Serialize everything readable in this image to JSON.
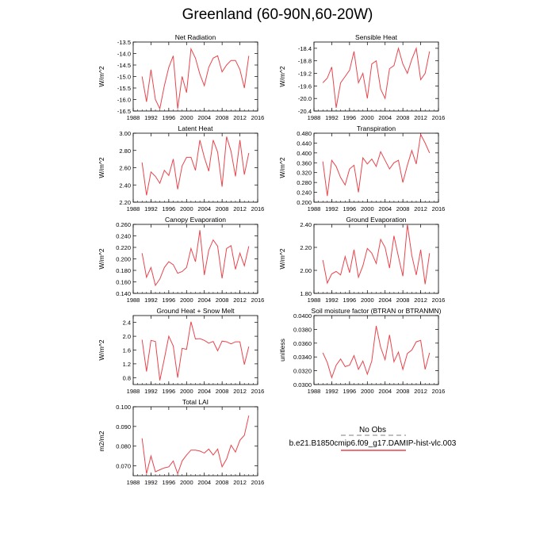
{
  "page": {
    "title": "Greenland (60-90N,60-20W)"
  },
  "legend": {
    "entries": [
      {
        "label": "No Obs",
        "color": "#aaaaaa",
        "dashed": true
      },
      {
        "label": "b.e21.B1850cmip6.f09_g17.DAMIP-hist-vlc.003",
        "color": "#e8454d",
        "dashed": false
      }
    ]
  },
  "chart_data": [
    {
      "type": "line",
      "title": "Net Radiation",
      "ylabel": "W/m^2",
      "xlim": [
        1988,
        2016
      ],
      "ylim": [
        -16.5,
        -13.5
      ],
      "xticks": [
        1988,
        1992,
        1996,
        2000,
        2004,
        2008,
        2012,
        2016
      ],
      "yticks": [
        -16.5,
        -16.0,
        -15.5,
        -15.0,
        -14.5,
        -14.0,
        -13.5
      ],
      "ytick_labels": [
        "-16.5",
        "-16.0",
        "-15.5",
        "-15.0",
        "-14.5",
        "-14.0",
        "-13.5"
      ],
      "x": [
        1990,
        1991,
        1992,
        1993,
        1994,
        1995,
        1996,
        1997,
        1998,
        1999,
        2000,
        2001,
        2002,
        2003,
        2004,
        2005,
        2006,
        2007,
        2008,
        2009,
        2010,
        2011,
        2012,
        2013,
        2014
      ],
      "series": [
        {
          "color": "#e8454d",
          "values": [
            -15.0,
            -16.1,
            -14.7,
            -16.0,
            -16.4,
            -15.4,
            -14.6,
            -14.1,
            -16.4,
            -15.0,
            -15.7,
            -13.8,
            -14.2,
            -14.9,
            -15.4,
            -14.6,
            -14.2,
            -14.1,
            -14.8,
            -14.5,
            -14.3,
            -14.3,
            -14.7,
            -15.5,
            -14.1
          ]
        }
      ]
    },
    {
      "type": "line",
      "title": "Sensible Heat",
      "ylabel": "W/m^2",
      "xlim": [
        1988,
        2016
      ],
      "ylim": [
        -20.4,
        -18.2
      ],
      "xticks": [
        1988,
        1992,
        1996,
        2000,
        2004,
        2008,
        2012,
        2016
      ],
      "yticks": [
        -20.4,
        -20.0,
        -19.6,
        -19.2,
        -18.8,
        -18.4
      ],
      "ytick_labels": [
        "-20.4",
        "-20.0",
        "-19.6",
        "-19.2",
        "-18.8",
        "-18.4"
      ],
      "x": [
        1990,
        1991,
        1992,
        1993,
        1994,
        1995,
        1996,
        1997,
        1998,
        1999,
        2000,
        2001,
        2002,
        2003,
        2004,
        2005,
        2006,
        2007,
        2008,
        2009,
        2010,
        2011,
        2012,
        2013,
        2014
      ],
      "series": [
        {
          "color": "#e8454d",
          "values": [
            -19.5,
            -19.35,
            -19.0,
            -20.3,
            -19.5,
            -19.3,
            -19.1,
            -18.5,
            -19.5,
            -19.2,
            -20.0,
            -18.9,
            -18.8,
            -19.7,
            -20.0,
            -19.05,
            -18.95,
            -18.4,
            -18.9,
            -19.2,
            -18.75,
            -18.4,
            -19.4,
            -19.2,
            -18.5
          ]
        }
      ]
    },
    {
      "type": "line",
      "title": "Latent Heat",
      "ylabel": "W/m^2",
      "xlim": [
        1988,
        2016
      ],
      "ylim": [
        2.2,
        3.0
      ],
      "xticks": [
        1988,
        1992,
        1996,
        2000,
        2004,
        2008,
        2012,
        2016
      ],
      "yticks": [
        2.2,
        2.4,
        2.6,
        2.8,
        3.0
      ],
      "ytick_labels": [
        "2.20",
        "2.40",
        "2.60",
        "2.80",
        "3.00"
      ],
      "x": [
        1990,
        1991,
        1992,
        1993,
        1994,
        1995,
        1996,
        1997,
        1998,
        1999,
        2000,
        2001,
        2002,
        2003,
        2004,
        2005,
        2006,
        2007,
        2008,
        2009,
        2010,
        2011,
        2012,
        2013,
        2014
      ],
      "series": [
        {
          "color": "#e8454d",
          "values": [
            2.66,
            2.28,
            2.55,
            2.5,
            2.42,
            2.57,
            2.51,
            2.7,
            2.35,
            2.62,
            2.72,
            2.72,
            2.57,
            2.92,
            2.72,
            2.56,
            2.92,
            2.78,
            2.38,
            2.96,
            2.79,
            2.5,
            2.92,
            2.52,
            2.77
          ]
        }
      ]
    },
    {
      "type": "line",
      "title": "Transpiration",
      "ylabel": "W/m^2",
      "xlim": [
        1988,
        2016
      ],
      "ylim": [
        0.2,
        0.48
      ],
      "xticks": [
        1988,
        1992,
        1996,
        2000,
        2004,
        2008,
        2012,
        2016
      ],
      "yticks": [
        0.2,
        0.24,
        0.28,
        0.32,
        0.36,
        0.4,
        0.44,
        0.48
      ],
      "ytick_labels": [
        "0.200",
        "0.240",
        "0.280",
        "0.320",
        "0.360",
        "0.400",
        "0.440",
        "0.480"
      ],
      "x": [
        1990,
        1991,
        1992,
        1993,
        1994,
        1995,
        1996,
        1997,
        1998,
        1999,
        2000,
        2001,
        2002,
        2003,
        2004,
        2005,
        2006,
        2007,
        2008,
        2009,
        2010,
        2011,
        2012,
        2013,
        2014
      ],
      "series": [
        {
          "color": "#e8454d",
          "values": [
            0.365,
            0.225,
            0.37,
            0.345,
            0.3,
            0.27,
            0.335,
            0.35,
            0.24,
            0.38,
            0.355,
            0.375,
            0.345,
            0.405,
            0.37,
            0.335,
            0.36,
            0.37,
            0.28,
            0.35,
            0.41,
            0.355,
            0.475,
            0.44,
            0.4
          ]
        }
      ]
    },
    {
      "type": "line",
      "title": "Canopy Evaporation",
      "ylabel": "W/m^2",
      "xlim": [
        1988,
        2016
      ],
      "ylim": [
        0.14,
        0.26
      ],
      "xticks": [
        1988,
        1992,
        1996,
        2000,
        2004,
        2008,
        2012,
        2016
      ],
      "yticks": [
        0.14,
        0.16,
        0.18,
        0.2,
        0.22,
        0.24,
        0.26
      ],
      "ytick_labels": [
        "0.140",
        "0.160",
        "0.180",
        "0.200",
        "0.220",
        "0.240",
        "0.260"
      ],
      "x": [
        1990,
        1991,
        1992,
        1993,
        1994,
        1995,
        1996,
        1997,
        1998,
        1999,
        2000,
        2001,
        2002,
        2003,
        2004,
        2005,
        2006,
        2007,
        2008,
        2009,
        2010,
        2011,
        2012,
        2013,
        2014
      ],
      "series": [
        {
          "color": "#e8454d",
          "values": [
            0.21,
            0.168,
            0.185,
            0.154,
            0.165,
            0.185,
            0.195,
            0.19,
            0.175,
            0.178,
            0.185,
            0.218,
            0.195,
            0.25,
            0.172,
            0.215,
            0.233,
            0.222,
            0.166,
            0.218,
            0.223,
            0.182,
            0.21,
            0.188,
            0.222
          ]
        }
      ]
    },
    {
      "type": "line",
      "title": "Ground Evaporation",
      "ylabel": "W/m^2",
      "xlim": [
        1988,
        2016
      ],
      "ylim": [
        1.8,
        2.4
      ],
      "xticks": [
        1988,
        1992,
        1996,
        2000,
        2004,
        2008,
        2012,
        2016
      ],
      "yticks": [
        1.8,
        2.0,
        2.2,
        2.4
      ],
      "ytick_labels": [
        "1.80",
        "2.00",
        "2.20",
        "2.40"
      ],
      "x": [
        1990,
        1991,
        1992,
        1993,
        1994,
        1995,
        1996,
        1997,
        1998,
        1999,
        2000,
        2001,
        2002,
        2003,
        2004,
        2005,
        2006,
        2007,
        2008,
        2009,
        2010,
        2011,
        2012,
        2013,
        2014
      ],
      "series": [
        {
          "color": "#e8454d",
          "values": [
            2.09,
            1.89,
            1.97,
            1.99,
            1.96,
            2.12,
            1.98,
            2.18,
            1.94,
            2.04,
            2.19,
            2.15,
            2.06,
            2.27,
            2.2,
            2.02,
            2.3,
            2.12,
            1.95,
            2.4,
            2.13,
            1.96,
            2.18,
            1.88,
            2.15
          ]
        }
      ]
    },
    {
      "type": "line",
      "title": "Ground Heat + Snow Melt",
      "ylabel": "W/m^2",
      "xlim": [
        1988,
        2016
      ],
      "ylim": [
        0.6,
        2.6
      ],
      "xticks": [
        1988,
        1992,
        1996,
        2000,
        2004,
        2008,
        2012,
        2016
      ],
      "yticks": [
        0.8,
        1.2,
        1.6,
        2.0,
        2.4
      ],
      "ytick_labels": [
        "0.8",
        "1.2",
        "1.6",
        "2.0",
        "2.4"
      ],
      "x": [
        1990,
        1991,
        1992,
        1993,
        1994,
        1995,
        1996,
        1997,
        1998,
        1999,
        2000,
        2001,
        2002,
        2003,
        2004,
        2005,
        2006,
        2007,
        2008,
        2009,
        2010,
        2011,
        2012,
        2013,
        2014
      ],
      "series": [
        {
          "color": "#e8454d",
          "values": [
            1.9,
            0.98,
            1.88,
            1.85,
            0.72,
            1.35,
            2.0,
            1.72,
            0.8,
            1.65,
            1.62,
            2.42,
            1.92,
            1.93,
            1.88,
            1.8,
            1.85,
            1.58,
            1.86,
            1.84,
            1.78,
            1.84,
            1.84,
            1.18,
            1.7
          ]
        }
      ]
    },
    {
      "type": "line",
      "title": "Soil moisture factor (BTRAN or BTRANMN)",
      "ylabel": "unitless",
      "xlim": [
        1988,
        2016
      ],
      "ylim": [
        0.03,
        0.04
      ],
      "xticks": [
        1988,
        1992,
        1996,
        2000,
        2004,
        2008,
        2012,
        2016
      ],
      "yticks": [
        0.03,
        0.032,
        0.034,
        0.036,
        0.038,
        0.04
      ],
      "ytick_labels": [
        "0.0300",
        "0.0320",
        "0.0340",
        "0.0360",
        "0.0380",
        "0.0400"
      ],
      "x": [
        1990,
        1991,
        1992,
        1993,
        1994,
        1995,
        1996,
        1997,
        1998,
        1999,
        2000,
        2001,
        2002,
        2003,
        2004,
        2005,
        2006,
        2007,
        2008,
        2009,
        2010,
        2011,
        2012,
        2013,
        2014
      ],
      "series": [
        {
          "color": "#e8454d",
          "values": [
            0.0346,
            0.0332,
            0.031,
            0.0328,
            0.0337,
            0.0326,
            0.0328,
            0.0342,
            0.0322,
            0.0334,
            0.0315,
            0.0334,
            0.0385,
            0.0354,
            0.0336,
            0.0372,
            0.0333,
            0.0347,
            0.0322,
            0.0345,
            0.035,
            0.0362,
            0.0364,
            0.0322,
            0.0346
          ]
        }
      ]
    },
    {
      "type": "line",
      "title": "Total LAI",
      "ylabel": "m2/m2",
      "xlim": [
        1988,
        2016
      ],
      "ylim": [
        0.065,
        0.1
      ],
      "xticks": [
        1988,
        1992,
        1996,
        2000,
        2004,
        2008,
        2012,
        2016
      ],
      "yticks": [
        0.07,
        0.08,
        0.09,
        0.1
      ],
      "ytick_labels": [
        "0.070",
        "0.080",
        "0.090",
        "0.100"
      ],
      "x": [
        1990,
        1991,
        1992,
        1993,
        1994,
        1995,
        1996,
        1997,
        1998,
        1999,
        2000,
        2001,
        2002,
        2003,
        2004,
        2005,
        2006,
        2007,
        2008,
        2009,
        2010,
        2011,
        2012,
        2013,
        2014
      ],
      "series": [
        {
          "color": "#e8454d",
          "values": [
            0.084,
            0.066,
            0.075,
            0.067,
            0.068,
            0.069,
            0.0695,
            0.0725,
            0.066,
            0.0725,
            0.0755,
            0.078,
            0.078,
            0.0775,
            0.0765,
            0.0785,
            0.0755,
            0.0785,
            0.0695,
            0.0735,
            0.0805,
            0.077,
            0.083,
            0.0855,
            0.0955
          ]
        }
      ]
    }
  ]
}
